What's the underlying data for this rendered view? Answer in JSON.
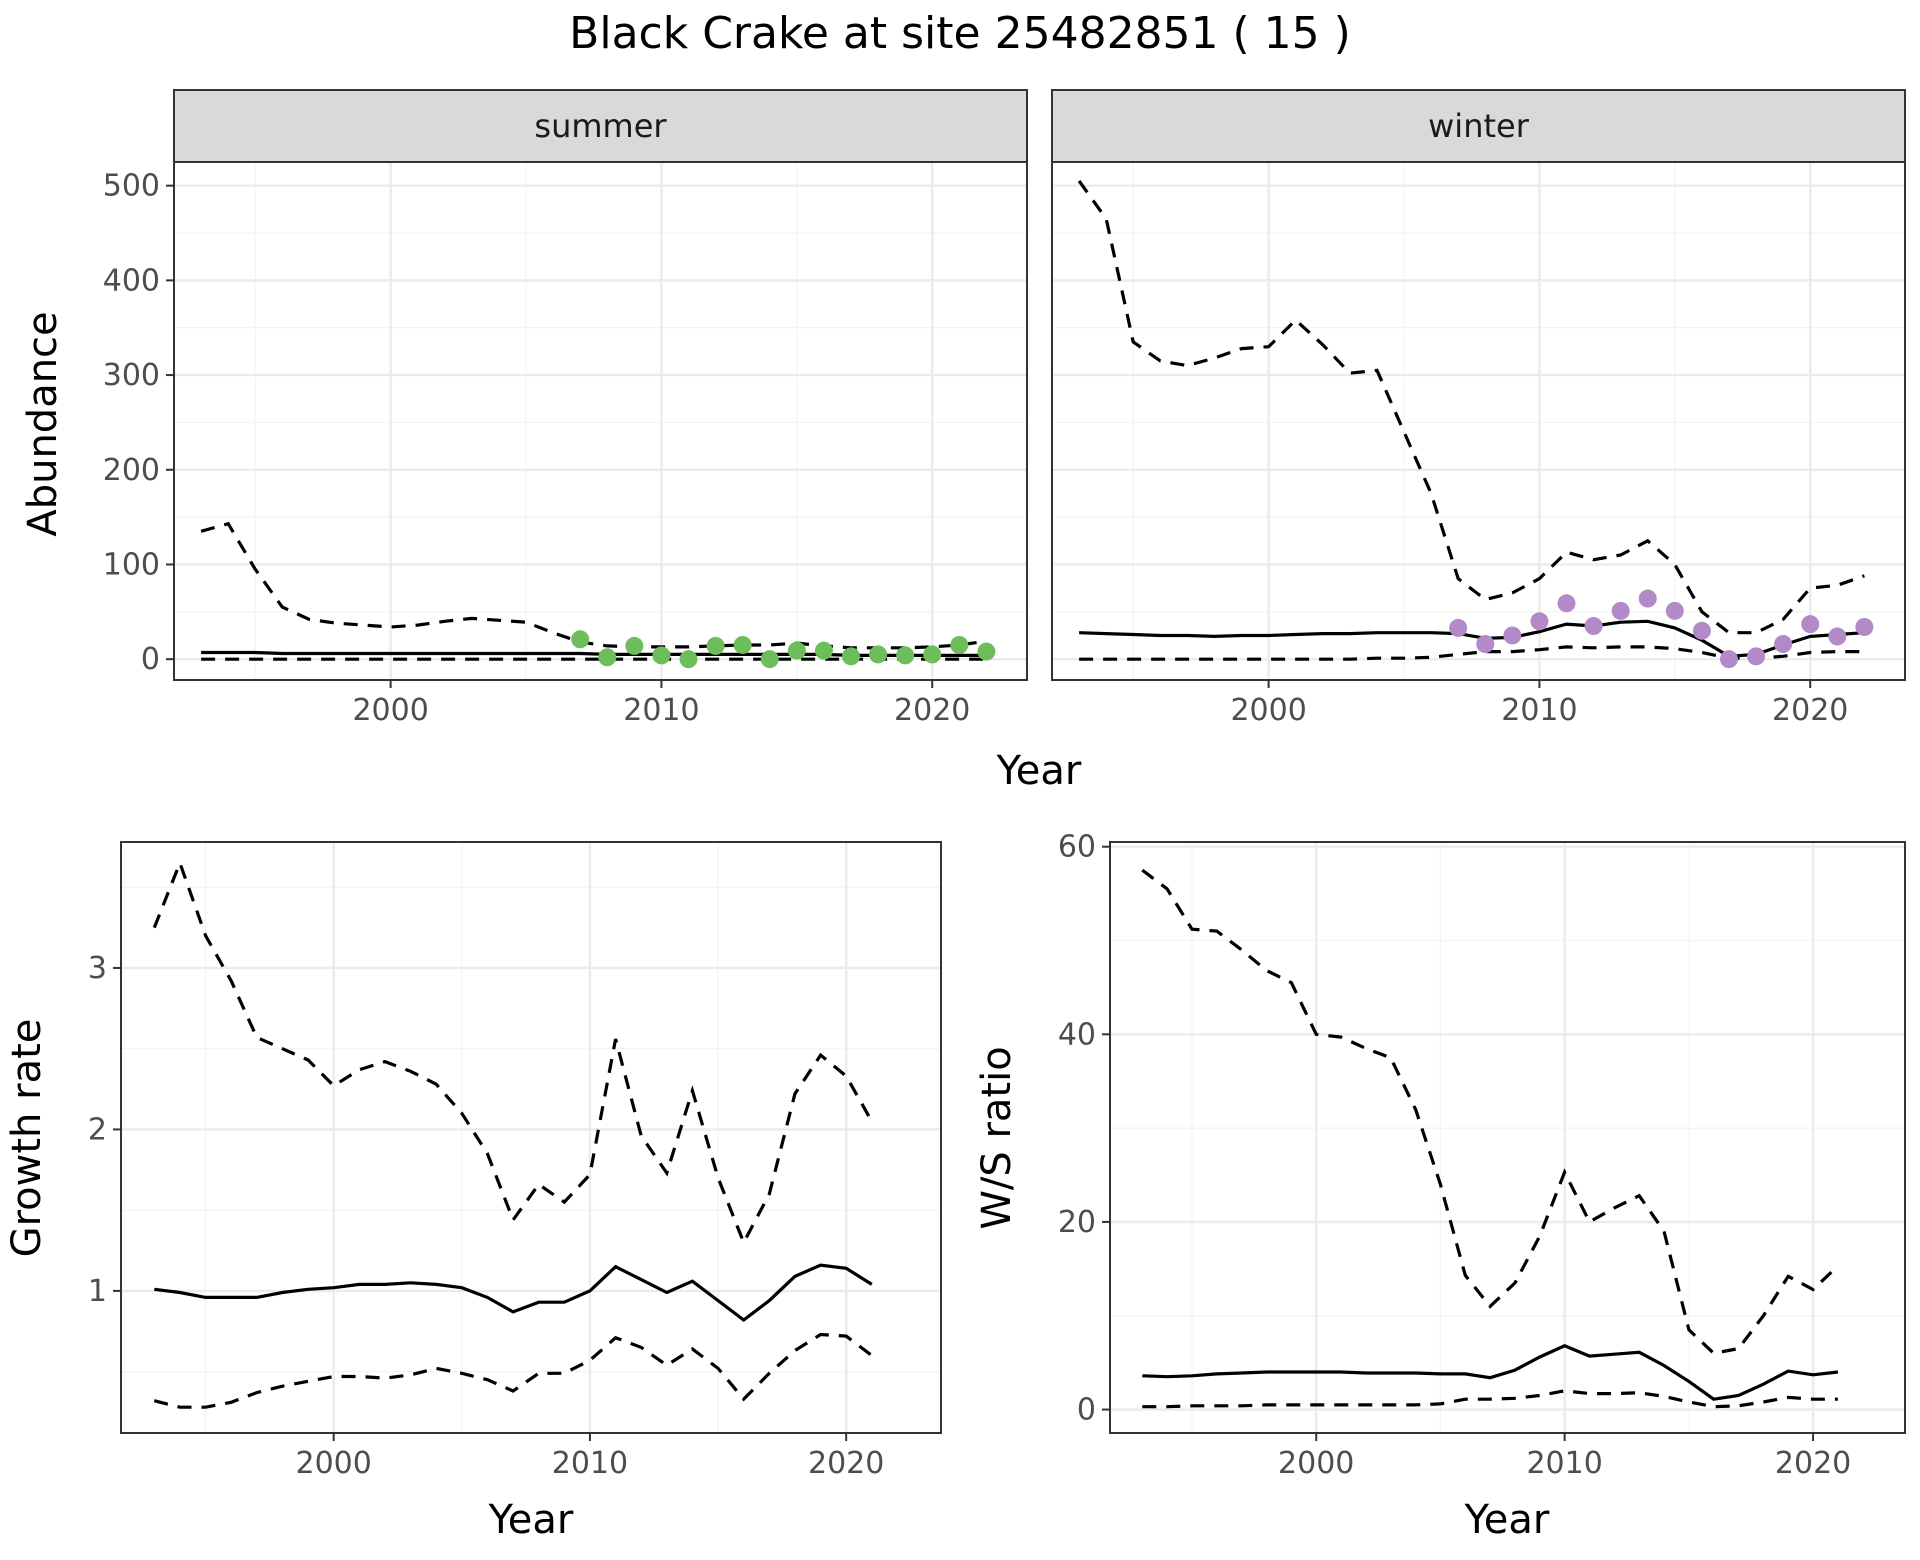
{
  "title": "Black Crake at site 25482851 ( 15 )",
  "chart_data": [
    {
      "type": "line",
      "facet": "summer",
      "xlabel": "Year",
      "ylabel": "Abundance",
      "xlim": [
        1992,
        2023.5
      ],
      "ylim": [
        -22,
        525
      ],
      "x_ticks": [
        2000,
        2010,
        2020
      ],
      "y_ticks": [
        0,
        100,
        200,
        300,
        400,
        500
      ],
      "grid": true,
      "series": [
        {
          "style": "solid",
          "x": [
            1993,
            1994,
            1995,
            1996,
            1997,
            1998,
            1999,
            2000,
            2001,
            2002,
            2003,
            2004,
            2005,
            2006,
            2007,
            2008,
            2009,
            2010,
            2011,
            2012,
            2013,
            2014,
            2015,
            2016,
            2017,
            2018,
            2019,
            2020,
            2021,
            2022
          ],
          "y": [
            7,
            7,
            7,
            6,
            6,
            6,
            6,
            6,
            6,
            6,
            6,
            6,
            6,
            6,
            6,
            5,
            5,
            5,
            5,
            5,
            5,
            5,
            5,
            5,
            4,
            4,
            4,
            4,
            4,
            4
          ]
        },
        {
          "style": "dashed",
          "x": [
            1993,
            1994,
            1995,
            1996,
            1997,
            1998,
            1999,
            2000,
            2001,
            2002,
            2003,
            2004,
            2005,
            2006,
            2007,
            2008,
            2009,
            2010,
            2011,
            2012,
            2013,
            2014,
            2015,
            2016,
            2017,
            2018,
            2019,
            2020,
            2021,
            2022
          ],
          "y": [
            135,
            143,
            95,
            55,
            42,
            38,
            36,
            34,
            36,
            40,
            43,
            41,
            39,
            28,
            18,
            14,
            13,
            13,
            13,
            14,
            15,
            15,
            17,
            14,
            12,
            12,
            12,
            13,
            15,
            19
          ]
        },
        {
          "style": "dashed",
          "x": [
            1993,
            1994,
            1995,
            1996,
            1997,
            1998,
            1999,
            2000,
            2001,
            2002,
            2003,
            2004,
            2005,
            2006,
            2007,
            2008,
            2009,
            2010,
            2011,
            2012,
            2013,
            2014,
            2015,
            2016,
            2017,
            2018,
            2019,
            2020,
            2021,
            2022
          ],
          "y": [
            0,
            0,
            0,
            0,
            0,
            0,
            0,
            0,
            0,
            0,
            0,
            0,
            0,
            0,
            0,
            0,
            0,
            0,
            0,
            0,
            0,
            0,
            0,
            0,
            0,
            0,
            0,
            0,
            0,
            0
          ]
        }
      ],
      "points": {
        "color": "#6dbe5b",
        "x": [
          2007,
          2008,
          2009,
          2010,
          2011,
          2012,
          2013,
          2014,
          2015,
          2016,
          2017,
          2018,
          2019,
          2020,
          2021,
          2022
        ],
        "y": [
          21,
          2,
          14,
          4,
          0,
          14,
          15,
          0,
          9,
          9,
          3,
          5,
          4,
          5,
          15,
          8
        ]
      }
    },
    {
      "type": "line",
      "facet": "winter",
      "xlabel": "Year",
      "ylabel": "Abundance",
      "xlim": [
        1992,
        2023.5
      ],
      "ylim": [
        -22,
        525
      ],
      "x_ticks": [
        2000,
        2010,
        2020
      ],
      "y_ticks": [
        0,
        100,
        200,
        300,
        400,
        500
      ],
      "grid": true,
      "series": [
        {
          "style": "solid",
          "x": [
            1993,
            1994,
            1995,
            1996,
            1997,
            1998,
            1999,
            2000,
            2001,
            2002,
            2003,
            2004,
            2005,
            2006,
            2007,
            2008,
            2009,
            2010,
            2011,
            2012,
            2013,
            2014,
            2015,
            2016,
            2017,
            2018,
            2019,
            2020,
            2021,
            2022
          ],
          "y": [
            28,
            27,
            26,
            25,
            25,
            24,
            25,
            25,
            26,
            27,
            27,
            28,
            28,
            28,
            27,
            22,
            23,
            29,
            37,
            35,
            39,
            40,
            33,
            20,
            3,
            5,
            15,
            24,
            26,
            28
          ]
        },
        {
          "style": "dashed",
          "x": [
            1993,
            1994,
            1995,
            1996,
            1997,
            1998,
            1999,
            2000,
            2001,
            2002,
            2003,
            2004,
            2005,
            2006,
            2007,
            2008,
            2009,
            2010,
            2011,
            2012,
            2013,
            2014,
            2015,
            2016,
            2017,
            2018,
            2019,
            2020,
            2021,
            2022
          ],
          "y": [
            505,
            465,
            335,
            315,
            310,
            318,
            328,
            330,
            358,
            332,
            302,
            305,
            240,
            175,
            85,
            63,
            70,
            85,
            113,
            105,
            110,
            125,
            100,
            50,
            28,
            28,
            42,
            75,
            78,
            88
          ]
        },
        {
          "style": "dashed",
          "x": [
            1993,
            1994,
            1995,
            1996,
            1997,
            1998,
            1999,
            2000,
            2001,
            2002,
            2003,
            2004,
            2005,
            2006,
            2007,
            2008,
            2009,
            2010,
            2011,
            2012,
            2013,
            2014,
            2015,
            2016,
            2017,
            2018,
            2019,
            2020,
            2021,
            2022
          ],
          "y": [
            0,
            0,
            0,
            0,
            0,
            0,
            0,
            0,
            0,
            0,
            0,
            1,
            1,
            2,
            5,
            8,
            8,
            10,
            13,
            12,
            13,
            13,
            11,
            7,
            1,
            1,
            3,
            7,
            8,
            8
          ]
        }
      ],
      "points": {
        "color": "#b38ac8",
        "x": [
          2007,
          2008,
          2009,
          2010,
          2011,
          2012,
          2013,
          2014,
          2015,
          2016,
          2017,
          2018,
          2019,
          2020,
          2021,
          2022
        ],
        "y": [
          33,
          16,
          25,
          40,
          59,
          35,
          51,
          64,
          51,
          30,
          0,
          3,
          16,
          37,
          24,
          34
        ]
      }
    },
    {
      "type": "line",
      "xlabel": "Year",
      "ylabel": "Growth rate",
      "xlim": [
        1991.7,
        2023.7
      ],
      "ylim": [
        0.12,
        3.78
      ],
      "x_ticks": [
        2000,
        2010,
        2020
      ],
      "y_ticks": [
        1,
        2,
        3
      ],
      "grid": true,
      "series": [
        {
          "style": "solid",
          "x": [
            1993,
            1994,
            1995,
            1996,
            1997,
            1998,
            1999,
            2000,
            2001,
            2002,
            2003,
            2004,
            2005,
            2006,
            2007,
            2008,
            2009,
            2010,
            2011,
            2012,
            2013,
            2014,
            2015,
            2016,
            2017,
            2018,
            2019,
            2020,
            2021
          ],
          "y": [
            1.01,
            0.99,
            0.96,
            0.96,
            0.96,
            0.99,
            1.01,
            1.02,
            1.04,
            1.04,
            1.05,
            1.04,
            1.02,
            0.96,
            0.87,
            0.93,
            0.93,
            1.0,
            1.15,
            1.07,
            0.99,
            1.06,
            0.94,
            0.82,
            0.94,
            1.09,
            1.16,
            1.14,
            1.04
          ]
        },
        {
          "style": "dashed",
          "x": [
            1993,
            1994,
            1995,
            1996,
            1997,
            1998,
            1999,
            2000,
            2001,
            2002,
            2003,
            2004,
            2005,
            2006,
            2007,
            2008,
            2009,
            2010,
            2011,
            2012,
            2013,
            2014,
            2015,
            2016,
            2017,
            2018,
            2019,
            2020,
            2021
          ],
          "y": [
            3.25,
            3.65,
            3.2,
            2.92,
            2.57,
            2.5,
            2.43,
            2.27,
            2.37,
            2.42,
            2.36,
            2.28,
            2.1,
            1.85,
            1.44,
            1.66,
            1.55,
            1.72,
            2.56,
            1.96,
            1.73,
            2.24,
            1.7,
            1.3,
            1.6,
            2.22,
            2.46,
            2.33,
            2.05
          ]
        },
        {
          "style": "dashed",
          "x": [
            1993,
            1994,
            1995,
            1996,
            1997,
            1998,
            1999,
            2000,
            2001,
            2002,
            2003,
            2004,
            2005,
            2006,
            2007,
            2008,
            2009,
            2010,
            2011,
            2012,
            2013,
            2014,
            2015,
            2016,
            2017,
            2018,
            2019,
            2020,
            2021
          ],
          "y": [
            0.32,
            0.28,
            0.28,
            0.31,
            0.37,
            0.41,
            0.44,
            0.47,
            0.47,
            0.46,
            0.48,
            0.52,
            0.49,
            0.45,
            0.38,
            0.49,
            0.49,
            0.57,
            0.71,
            0.65,
            0.54,
            0.64,
            0.52,
            0.33,
            0.49,
            0.63,
            0.73,
            0.72,
            0.6
          ]
        }
      ]
    },
    {
      "type": "line",
      "xlabel": "Year",
      "ylabel": "W/S ratio",
      "xlim": [
        1991.7,
        2023.7
      ],
      "ylim": [
        -2.5,
        60.5
      ],
      "x_ticks": [
        2000,
        2010,
        2020
      ],
      "y_ticks": [
        0,
        20,
        40,
        60
      ],
      "grid": true,
      "series": [
        {
          "style": "solid",
          "x": [
            1993,
            1994,
            1995,
            1996,
            1997,
            1998,
            1999,
            2000,
            2001,
            2002,
            2003,
            2004,
            2005,
            2006,
            2007,
            2008,
            2009,
            2010,
            2011,
            2012,
            2013,
            2014,
            2015,
            2016,
            2017,
            2018,
            2019,
            2020,
            2021
          ],
          "y": [
            3.6,
            3.5,
            3.6,
            3.8,
            3.9,
            4.0,
            4.0,
            4.0,
            4.0,
            3.9,
            3.9,
            3.9,
            3.8,
            3.8,
            3.4,
            4.2,
            5.6,
            6.8,
            5.7,
            5.9,
            6.1,
            4.7,
            3.0,
            1.1,
            1.5,
            2.7,
            4.1,
            3.7,
            4.0
          ]
        },
        {
          "style": "dashed",
          "x": [
            1993,
            1994,
            1995,
            1996,
            1997,
            1998,
            1999,
            2000,
            2001,
            2002,
            2003,
            2004,
            2005,
            2006,
            2007,
            2008,
            2009,
            2010,
            2011,
            2012,
            2013,
            2014,
            2015,
            2016,
            2017,
            2018,
            2019,
            2020,
            2021
          ],
          "y": [
            57.5,
            55.5,
            51.2,
            51.0,
            49.0,
            46.8,
            45.5,
            40.0,
            39.7,
            38.5,
            37.5,
            32.0,
            24.0,
            14.3,
            11.0,
            13.5,
            18.5,
            25.3,
            20.0,
            21.5,
            22.8,
            19.0,
            8.5,
            6.0,
            6.5,
            10.0,
            14.2,
            12.8,
            15.3
          ]
        },
        {
          "style": "dashed",
          "x": [
            1993,
            1994,
            1995,
            1996,
            1997,
            1998,
            1999,
            2000,
            2001,
            2002,
            2003,
            2004,
            2005,
            2006,
            2007,
            2008,
            2009,
            2010,
            2011,
            2012,
            2013,
            2014,
            2015,
            2016,
            2017,
            2018,
            2019,
            2020,
            2021
          ],
          "y": [
            0.3,
            0.3,
            0.4,
            0.4,
            0.4,
            0.5,
            0.5,
            0.5,
            0.5,
            0.5,
            0.5,
            0.5,
            0.6,
            1.1,
            1.1,
            1.2,
            1.5,
            2.0,
            1.7,
            1.7,
            1.8,
            1.4,
            0.8,
            0.3,
            0.4,
            0.8,
            1.3,
            1.1,
            1.1
          ]
        }
      ]
    }
  ]
}
